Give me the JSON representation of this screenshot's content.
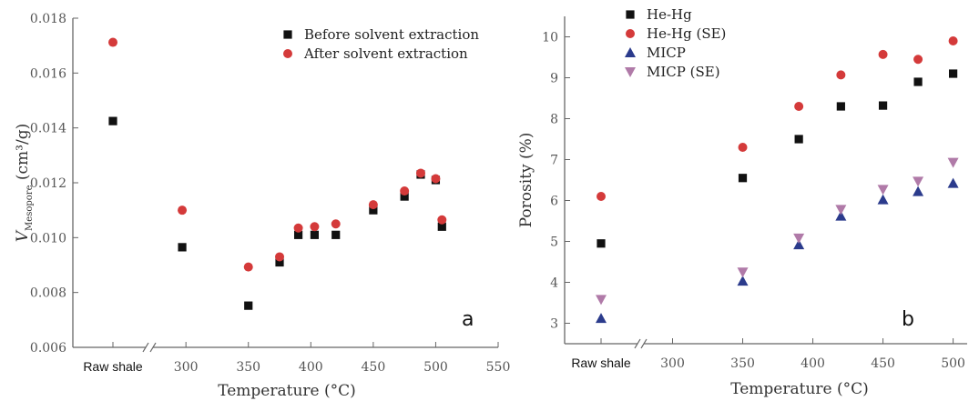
{
  "chart_data": [
    {
      "type": "scatter",
      "panel_label": "a",
      "xlabel": "Temperature (°C)",
      "ylabel_main": "V",
      "ylabel_sub": "Mesopore",
      "ylabel_unit": " (cm³/g)",
      "ylim": [
        0.006,
        0.018
      ],
      "y_ticks": [
        "0.006",
        "0.008",
        "0.010",
        "0.012",
        "0.014",
        "0.016",
        "0.018"
      ],
      "x_categorical_label": "Raw shale",
      "x_ticks": [
        "300",
        "350",
        "400",
        "450",
        "500",
        "550"
      ],
      "xlim": [
        285,
        550
      ],
      "legend_position": "top-right",
      "series": [
        {
          "name": "Before solvent extraction",
          "marker": "square",
          "color": "#111111",
          "points": [
            [
              "Raw shale",
              0.01425
            ],
            [
              297,
              0.00965
            ],
            [
              350,
              0.00752
            ],
            [
              375,
              0.0091
            ],
            [
              390,
              0.0101
            ],
            [
              403,
              0.0101
            ],
            [
              420,
              0.0101
            ],
            [
              450,
              0.011
            ],
            [
              475,
              0.0115
            ],
            [
              488,
              0.0123
            ],
            [
              500,
              0.0121
            ],
            [
              505,
              0.0104
            ]
          ]
        },
        {
          "name": "After solvent extraction",
          "marker": "circle",
          "color": "#d43a3a",
          "points": [
            [
              "Raw shale",
              0.01712
            ],
            [
              297,
              0.011
            ],
            [
              350,
              0.00893
            ],
            [
              375,
              0.0093
            ],
            [
              390,
              0.01035
            ],
            [
              403,
              0.0104
            ],
            [
              420,
              0.0105
            ],
            [
              450,
              0.0112
            ],
            [
              475,
              0.0117
            ],
            [
              488,
              0.01235
            ],
            [
              500,
              0.01215
            ],
            [
              505,
              0.01065
            ]
          ]
        }
      ]
    },
    {
      "type": "scatter",
      "panel_label": "b",
      "xlabel": "Temperature (°C)",
      "ylabel": "Porosity (%)",
      "ylim": [
        2.5,
        10.5
      ],
      "y_ticks": [
        "3",
        "4",
        "5",
        "6",
        "7",
        "8",
        "9",
        "10"
      ],
      "x_categorical_label": "Raw shale",
      "x_ticks": [
        "300",
        "350",
        "400",
        "450",
        "500"
      ],
      "xlim": [
        275,
        510
      ],
      "legend_position": "top-left",
      "series": [
        {
          "name": "He-Hg",
          "marker": "square",
          "color": "#111111",
          "points": [
            [
              "Raw shale",
              4.95
            ],
            [
              350,
              6.55
            ],
            [
              390,
              7.5
            ],
            [
              420,
              8.3
            ],
            [
              450,
              8.32
            ],
            [
              475,
              8.9
            ],
            [
              500,
              9.1
            ]
          ]
        },
        {
          "name": "He-Hg (SE)",
          "marker": "circle",
          "color": "#d43a3a",
          "points": [
            [
              "Raw shale",
              6.1
            ],
            [
              350,
              7.3
            ],
            [
              390,
              8.3
            ],
            [
              420,
              9.07
            ],
            [
              450,
              9.57
            ],
            [
              475,
              9.45
            ],
            [
              500,
              9.9
            ]
          ]
        },
        {
          "name": "MICP",
          "marker": "triangle-up",
          "color": "#2b3b8c",
          "points": [
            [
              "Raw shale",
              3.12
            ],
            [
              350,
              4.03
            ],
            [
              390,
              4.92
            ],
            [
              420,
              5.62
            ],
            [
              450,
              6.02
            ],
            [
              475,
              6.22
            ],
            [
              500,
              6.42
            ]
          ]
        },
        {
          "name": "MICP (SE)",
          "marker": "triangle-down",
          "color": "#b07aa8",
          "points": [
            [
              "Raw shale",
              3.58
            ],
            [
              350,
              4.25
            ],
            [
              390,
              5.08
            ],
            [
              420,
              5.78
            ],
            [
              450,
              6.27
            ],
            [
              475,
              6.47
            ],
            [
              500,
              6.93
            ]
          ]
        }
      ]
    }
  ]
}
